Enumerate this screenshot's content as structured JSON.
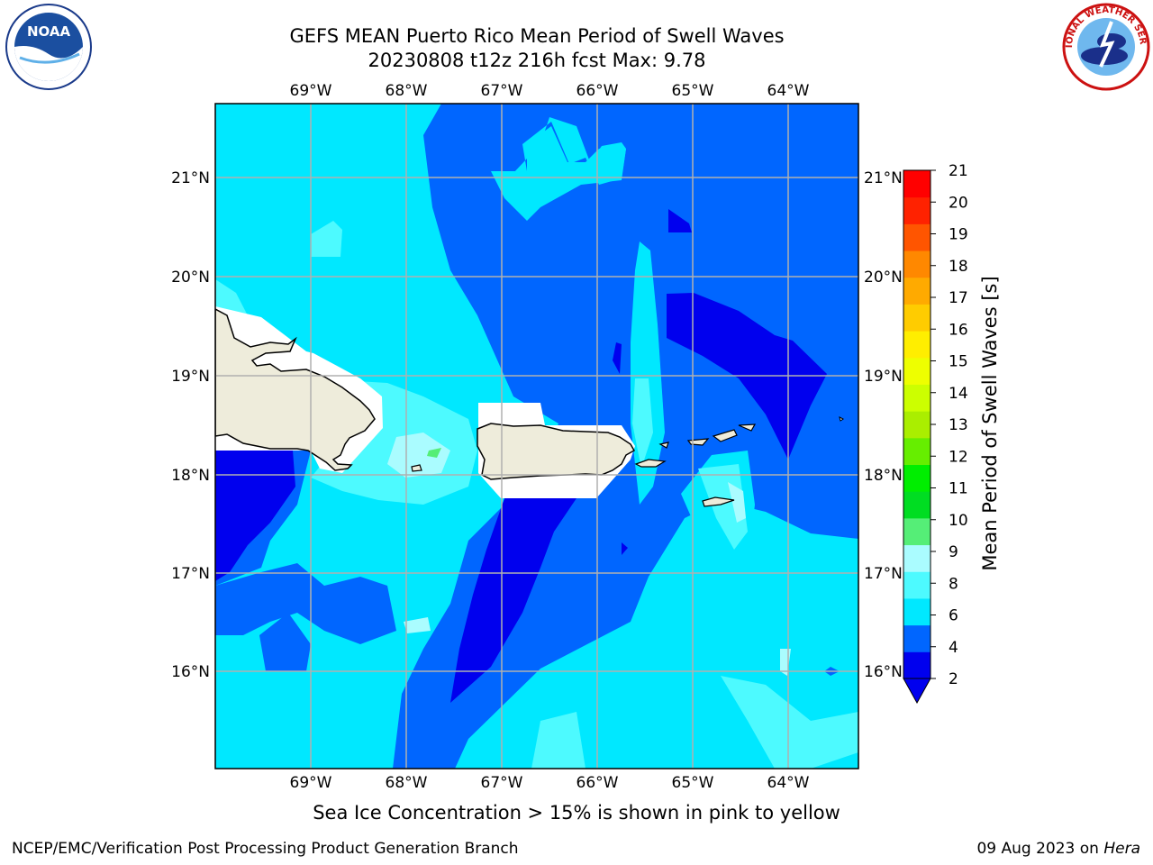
{
  "header": {
    "title_line1": "GEFS MEAN Puerto Rico Mean Period of Swell Waves",
    "title_line2": "20230808 t12z 216h fcst   Max: 9.78"
  },
  "logos": {
    "left": "noaa-logo",
    "left_text": "NOAA",
    "right": "nws-logo",
    "right_text": "NATIONAL WEATHER SERVICE"
  },
  "map": {
    "lon_ticks": [
      "69°W",
      "68°W",
      "67°W",
      "66°W",
      "65°W",
      "64°W"
    ],
    "lat_ticks": [
      "21°N",
      "20°N",
      "19°N",
      "18°N",
      "17°N",
      "16°N"
    ],
    "lon_range": [
      -70.0,
      -63.25
    ],
    "lat_range": [
      15.0,
      21.75
    ],
    "grid": true,
    "land_color": "#eeecdb",
    "coast_color": "#000000"
  },
  "colorbar": {
    "label": "Mean Period of Swell Waves [s]",
    "ticks": [
      "21",
      "20",
      "19",
      "18",
      "17",
      "16",
      "15",
      "14",
      "13",
      "12",
      "11",
      "10",
      "9",
      "8",
      "6",
      "4",
      "2"
    ],
    "colors": [
      "#0000ee",
      "#0066ff",
      "#00e8ff",
      "#4dfaff",
      "#aafcff",
      "#55ee77",
      "#00dd22",
      "#00ee00",
      "#66ee00",
      "#aaee00",
      "#ccff00",
      "#eeff00",
      "#ffee00",
      "#ffcc00",
      "#ffaa00",
      "#ff8800",
      "#ff5500",
      "#ff2200",
      "#ff0000"
    ],
    "extend": "min"
  },
  "footer": {
    "note": "Sea Ice Concentration > 15% is shown in pink to yellow",
    "left": "NCEP/EMC/Verification Post Processing Product Generation Branch",
    "right_date": "09 Aug 2023 on ",
    "right_host": "Hera"
  }
}
